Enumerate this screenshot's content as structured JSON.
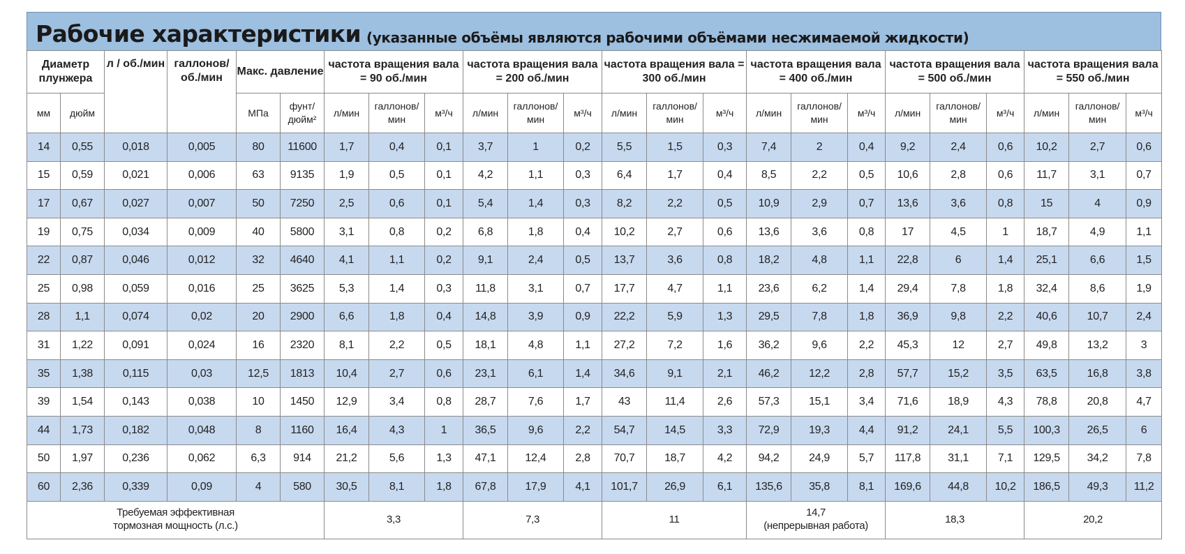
{
  "title": {
    "main": "Рабочие характеристики",
    "sub": "(указанные объёмы являются рабочими объёмами несжимаемой жидкости)"
  },
  "header": {
    "diameter": "Диаметр плунжера",
    "l_per_rev": "л / об./мин",
    "gal_per_rev": "галлонов/ об./мин",
    "max_pressure": "Макс. давление",
    "groups": [
      "частота вращения вала = 90 об./мин",
      "частота вращения вала = 200 об./мин",
      "частота вращения вала = 300 об./мин",
      "частота вращения вала = 400 об./мин",
      "частота вращения вала = 500 об./мин",
      "частота вращения вала = 550 об./мин"
    ],
    "sub": {
      "mm": "мм",
      "inch": "дюйм",
      "mpa": "МПа",
      "psi": "фунт/ дюйм²",
      "lmin": "л/мин",
      "galmin": "галлонов/ мин",
      "m3h": "м³/ч"
    }
  },
  "rows": [
    [
      "14",
      "0,55",
      "0,018",
      "0,005",
      "80",
      "11600",
      "1,7",
      "0,4",
      "0,1",
      "3,7",
      "1",
      "0,2",
      "5,5",
      "1,5",
      "0,3",
      "7,4",
      "2",
      "0,4",
      "9,2",
      "2,4",
      "0,6",
      "10,2",
      "2,7",
      "0,6"
    ],
    [
      "15",
      "0,59",
      "0,021",
      "0,006",
      "63",
      "9135",
      "1,9",
      "0,5",
      "0,1",
      "4,2",
      "1,1",
      "0,3",
      "6,4",
      "1,7",
      "0,4",
      "8,5",
      "2,2",
      "0,5",
      "10,6",
      "2,8",
      "0,6",
      "11,7",
      "3,1",
      "0,7"
    ],
    [
      "17",
      "0,67",
      "0,027",
      "0,007",
      "50",
      "7250",
      "2,5",
      "0,6",
      "0,1",
      "5,4",
      "1,4",
      "0,3",
      "8,2",
      "2,2",
      "0,5",
      "10,9",
      "2,9",
      "0,7",
      "13,6",
      "3,6",
      "0,8",
      "15",
      "4",
      "0,9"
    ],
    [
      "19",
      "0,75",
      "0,034",
      "0,009",
      "40",
      "5800",
      "3,1",
      "0,8",
      "0,2",
      "6,8",
      "1,8",
      "0,4",
      "10,2",
      "2,7",
      "0,6",
      "13,6",
      "3,6",
      "0,8",
      "17",
      "4,5",
      "1",
      "18,7",
      "4,9",
      "1,1"
    ],
    [
      "22",
      "0,87",
      "0,046",
      "0,012",
      "32",
      "4640",
      "4,1",
      "1,1",
      "0,2",
      "9,1",
      "2,4",
      "0,5",
      "13,7",
      "3,6",
      "0,8",
      "18,2",
      "4,8",
      "1,1",
      "22,8",
      "6",
      "1,4",
      "25,1",
      "6,6",
      "1,5"
    ],
    [
      "25",
      "0,98",
      "0,059",
      "0,016",
      "25",
      "3625",
      "5,3",
      "1,4",
      "0,3",
      "11,8",
      "3,1",
      "0,7",
      "17,7",
      "4,7",
      "1,1",
      "23,6",
      "6,2",
      "1,4",
      "29,4",
      "7,8",
      "1,8",
      "32,4",
      "8,6",
      "1,9"
    ],
    [
      "28",
      "1,1",
      "0,074",
      "0,02",
      "20",
      "2900",
      "6,6",
      "1,8",
      "0,4",
      "14,8",
      "3,9",
      "0,9",
      "22,2",
      "5,9",
      "1,3",
      "29,5",
      "7,8",
      "1,8",
      "36,9",
      "9,8",
      "2,2",
      "40,6",
      "10,7",
      "2,4"
    ],
    [
      "31",
      "1,22",
      "0,091",
      "0,024",
      "16",
      "2320",
      "8,1",
      "2,2",
      "0,5",
      "18,1",
      "4,8",
      "1,1",
      "27,2",
      "7,2",
      "1,6",
      "36,2",
      "9,6",
      "2,2",
      "45,3",
      "12",
      "2,7",
      "49,8",
      "13,2",
      "3"
    ],
    [
      "35",
      "1,38",
      "0,115",
      "0,03",
      "12,5",
      "1813",
      "10,4",
      "2,7",
      "0,6",
      "23,1",
      "6,1",
      "1,4",
      "34,6",
      "9,1",
      "2,1",
      "46,2",
      "12,2",
      "2,8",
      "57,7",
      "15,2",
      "3,5",
      "63,5",
      "16,8",
      "3,8"
    ],
    [
      "39",
      "1,54",
      "0,143",
      "0,038",
      "10",
      "1450",
      "12,9",
      "3,4",
      "0,8",
      "28,7",
      "7,6",
      "1,7",
      "43",
      "11,4",
      "2,6",
      "57,3",
      "15,1",
      "3,4",
      "71,6",
      "18,9",
      "4,3",
      "78,8",
      "20,8",
      "4,7"
    ],
    [
      "44",
      "1,73",
      "0,182",
      "0,048",
      "8",
      "1160",
      "16,4",
      "4,3",
      "1",
      "36,5",
      "9,6",
      "2,2",
      "54,7",
      "14,5",
      "3,3",
      "72,9",
      "19,3",
      "4,4",
      "91,2",
      "24,1",
      "5,5",
      "100,3",
      "26,5",
      "6"
    ],
    [
      "50",
      "1,97",
      "0,236",
      "0,062",
      "6,3",
      "914",
      "21,2",
      "5,6",
      "1,3",
      "47,1",
      "12,4",
      "2,8",
      "70,7",
      "18,7",
      "4,2",
      "94,2",
      "24,9",
      "5,7",
      "117,8",
      "31,1",
      "7,1",
      "129,5",
      "34,2",
      "7,8"
    ],
    [
      "60",
      "2,36",
      "0,339",
      "0,09",
      "4",
      "580",
      "30,5",
      "8,1",
      "1,8",
      "67,8",
      "17,9",
      "4,1",
      "101,7",
      "26,9",
      "6,1",
      "135,6",
      "35,8",
      "8,1",
      "169,6",
      "44,8",
      "10,2",
      "186,5",
      "49,3",
      "11,2"
    ]
  ],
  "footer": {
    "label_line1": "Требуемая эффективная",
    "label_line2": "тормозная мощность (л.с.)",
    "values": [
      {
        "line1": "3,3",
        "line2": ""
      },
      {
        "line1": "7,3",
        "line2": ""
      },
      {
        "line1": "11",
        "line2": ""
      },
      {
        "line1": "14,7",
        "line2": "(непрерывная работа)"
      },
      {
        "line1": "18,3",
        "line2": ""
      },
      {
        "line1": "20,2",
        "line2": ""
      }
    ]
  },
  "colors": {
    "title_bg": "#9dbfe0",
    "band_bg": "#c7d9ef",
    "border": "#8a8a8a"
  }
}
